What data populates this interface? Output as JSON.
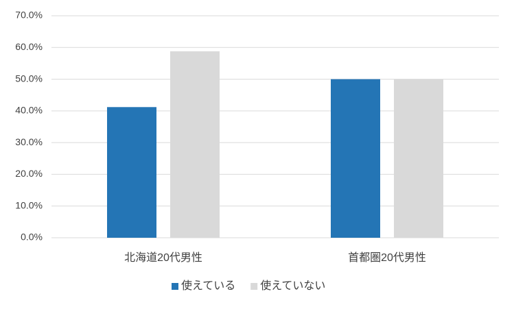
{
  "chart_data": {
    "type": "bar",
    "categories": [
      "北海道20代男性",
      "首都圏20代男性"
    ],
    "series": [
      {
        "name": "使えている",
        "color": "#2475b5",
        "values": [
          41.2,
          50.0
        ]
      },
      {
        "name": "使えていない",
        "color": "#d9d9d9",
        "values": [
          58.8,
          50.0
        ]
      }
    ],
    "ylim": [
      0,
      70
    ],
    "yticks": [
      {
        "value": 0,
        "label": "0.0%"
      },
      {
        "value": 10,
        "label": "10.0%"
      },
      {
        "value": 20,
        "label": "20.0%"
      },
      {
        "value": 30,
        "label": "30.0%"
      },
      {
        "value": 40,
        "label": "40.0%"
      },
      {
        "value": 50,
        "label": "50.0%"
      },
      {
        "value": 60,
        "label": "60.0%"
      },
      {
        "value": 70,
        "label": "70.0%"
      }
    ],
    "grid": true,
    "legend": "bottom"
  }
}
